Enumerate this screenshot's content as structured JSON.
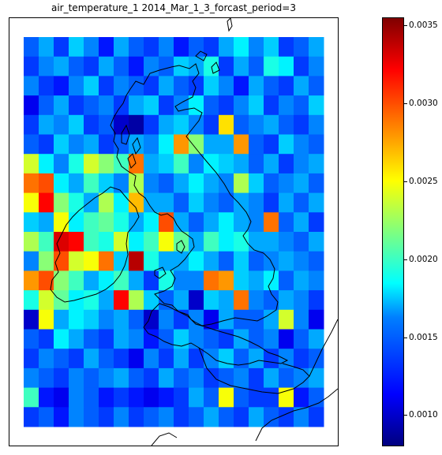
{
  "title": "air_temperature_1 2014_Mar_1_3_forcast_period=3",
  "colorbar": {
    "colormap": "jet",
    "range": [
      0.0008,
      0.00355
    ],
    "ticks": [
      "0.0010",
      "0.0015",
      "0.0020",
      "0.0025",
      "0.0030",
      "0.0035"
    ],
    "stops": [
      "#00007f",
      "#0000ff",
      "#007fff",
      "#00ffff",
      "#7fff7f",
      "#ffff00",
      "#ff7f00",
      "#ff0000",
      "#7f0000"
    ]
  },
  "map": {
    "grid_rows": 20,
    "grid_cols": 20,
    "grid_values": [
      [
        0.0014,
        0.0016,
        0.0013,
        0.0017,
        0.0015,
        0.0012,
        0.0016,
        0.0014,
        0.0013,
        0.0015,
        0.0012,
        0.0014,
        0.0013,
        0.0016,
        0.0018,
        0.0015,
        0.0017,
        0.0013,
        0.0014,
        0.0016
      ],
      [
        0.0013,
        0.0015,
        0.0016,
        0.0014,
        0.0013,
        0.0016,
        0.0014,
        0.0012,
        0.0015,
        0.0014,
        0.0017,
        0.0016,
        0.0019,
        0.0013,
        0.0016,
        0.0014,
        0.0019,
        0.0018,
        0.0013,
        0.0015
      ],
      [
        0.0015,
        0.0013,
        0.0012,
        0.0015,
        0.0017,
        0.0013,
        0.0015,
        0.0014,
        0.0013,
        0.0016,
        0.0014,
        0.0013,
        0.0017,
        0.0015,
        0.0012,
        0.0016,
        0.0014,
        0.0013,
        0.0016,
        0.0014
      ],
      [
        0.0011,
        0.0014,
        0.0016,
        0.0013,
        0.0014,
        0.0015,
        0.0013,
        0.0016,
        0.0017,
        0.0013,
        0.0015,
        0.0018,
        0.0014,
        0.0013,
        0.0015,
        0.0017,
        0.0013,
        0.0015,
        0.0014,
        0.0017
      ],
      [
        0.0013,
        0.0016,
        0.0015,
        0.0017,
        0.0013,
        0.0014,
        0.001,
        0.0009,
        0.0013,
        0.0016,
        0.0017,
        0.0015,
        0.0013,
        0.0026,
        0.0014,
        0.0015,
        0.0016,
        0.0014,
        0.0013,
        0.0015
      ],
      [
        0.0014,
        0.0013,
        0.0017,
        0.0015,
        0.0016,
        0.0013,
        0.0014,
        0.0016,
        0.0015,
        0.0018,
        0.0028,
        0.0022,
        0.0016,
        0.0016,
        0.0028,
        0.0014,
        0.0013,
        0.0017,
        0.0015,
        0.0014
      ],
      [
        0.0024,
        0.0018,
        0.0015,
        0.0019,
        0.0024,
        0.0022,
        0.002,
        0.0029,
        0.0016,
        0.0017,
        0.002,
        0.0015,
        0.0018,
        0.0017,
        0.0016,
        0.0014,
        0.0016,
        0.0013,
        0.0015,
        0.0016
      ],
      [
        0.0029,
        0.003,
        0.0018,
        0.0016,
        0.002,
        0.0017,
        0.0015,
        0.0023,
        0.0015,
        0.0014,
        0.0016,
        0.0018,
        0.0016,
        0.0015,
        0.0023,
        0.0017,
        0.0014,
        0.0015,
        0.0016,
        0.0014
      ],
      [
        0.0025,
        0.0032,
        0.0022,
        0.0019,
        0.0016,
        0.0023,
        0.0018,
        0.0027,
        0.0016,
        0.0016,
        0.0014,
        0.0017,
        0.0015,
        0.0014,
        0.0016,
        0.0015,
        0.0013,
        0.0016,
        0.0014,
        0.0016
      ],
      [
        0.0017,
        0.0016,
        0.0025,
        0.0018,
        0.002,
        0.0021,
        0.0019,
        0.0016,
        0.0018,
        0.003,
        0.0016,
        0.0014,
        0.0016,
        0.0018,
        0.0016,
        0.0015,
        0.0029,
        0.0014,
        0.0016,
        0.0013
      ],
      [
        0.0023,
        0.002,
        0.0033,
        0.0032,
        0.002,
        0.0019,
        0.0024,
        0.0018,
        0.002,
        0.0025,
        0.0021,
        0.0016,
        0.002,
        0.0018,
        0.0019,
        0.0016,
        0.0016,
        0.0015,
        0.0014,
        0.0016
      ],
      [
        0.0015,
        0.0022,
        0.003,
        0.0024,
        0.0025,
        0.0029,
        0.0017,
        0.0034,
        0.0019,
        0.0016,
        0.0016,
        0.0018,
        0.0016,
        0.0014,
        0.0017,
        0.0014,
        0.0015,
        0.0016,
        0.0015,
        0.0014
      ],
      [
        0.0028,
        0.003,
        0.0022,
        0.002,
        0.0016,
        0.0018,
        0.002,
        0.0016,
        0.0013,
        0.0019,
        0.0015,
        0.0015,
        0.0029,
        0.0028,
        0.0017,
        0.0016,
        0.0018,
        0.0014,
        0.0016,
        0.0015
      ],
      [
        0.0019,
        0.0024,
        0.0021,
        0.0018,
        0.0019,
        0.0016,
        0.0032,
        0.0023,
        0.0017,
        0.0014,
        0.0016,
        0.001,
        0.0017,
        0.0016,
        0.0029,
        0.0015,
        0.0014,
        0.0016,
        0.0015,
        0.0013
      ],
      [
        0.001,
        0.0025,
        0.0016,
        0.0018,
        0.0017,
        0.0015,
        0.0016,
        0.0014,
        0.001,
        0.0015,
        0.0013,
        0.0015,
        0.0011,
        0.0016,
        0.0014,
        0.0014,
        0.0016,
        0.0024,
        0.0015,
        0.0011
      ],
      [
        0.0014,
        0.0013,
        0.0018,
        0.0016,
        0.0014,
        0.0013,
        0.0016,
        0.0015,
        0.0012,
        0.0014,
        0.0017,
        0.0015,
        0.0014,
        0.0013,
        0.0016,
        0.0014,
        0.0015,
        0.0011,
        0.0014,
        0.0016
      ],
      [
        0.0013,
        0.0015,
        0.0014,
        0.0013,
        0.0016,
        0.0014,
        0.0013,
        0.0011,
        0.0015,
        0.0013,
        0.0016,
        0.0013,
        0.0015,
        0.0017,
        0.0014,
        0.0016,
        0.0013,
        0.0015,
        0.0013,
        0.0014
      ],
      [
        0.0015,
        0.0014,
        0.0013,
        0.0015,
        0.0014,
        0.0015,
        0.0016,
        0.0014,
        0.0013,
        0.0016,
        0.0014,
        0.0015,
        0.0013,
        0.0014,
        0.0015,
        0.0013,
        0.0016,
        0.0014,
        0.0015,
        0.0016
      ],
      [
        0.002,
        0.0012,
        0.0011,
        0.0015,
        0.0014,
        0.0012,
        0.0013,
        0.0012,
        0.0011,
        0.0012,
        0.0013,
        0.0016,
        0.0014,
        0.0025,
        0.0014,
        0.0013,
        0.0013,
        0.0025,
        0.0012,
        0.0014
      ],
      [
        0.0013,
        0.0014,
        0.0012,
        0.0015,
        0.0014,
        0.0013,
        0.0015,
        0.0013,
        0.0014,
        0.0015,
        0.0013,
        0.0014,
        0.0016,
        0.0014,
        0.0013,
        0.0016,
        0.0014,
        0.0013,
        0.0015,
        0.0013
      ]
    ]
  }
}
